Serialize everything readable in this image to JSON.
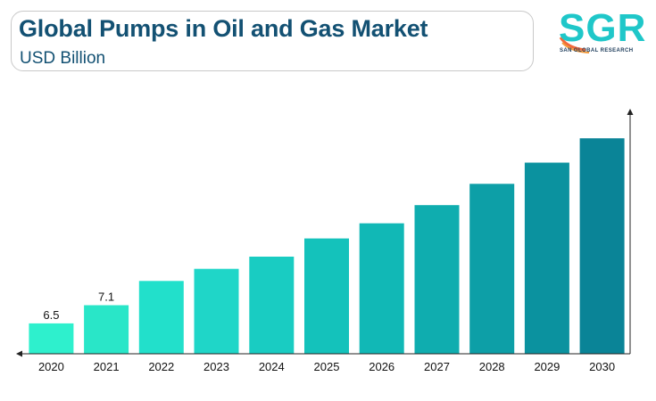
{
  "header": {
    "title": "Global Pumps in Oil and Gas Market",
    "subtitle": "USD Billion"
  },
  "logo": {
    "text": "SGR",
    "subtext": "SAN GLOBAL RESEARCH",
    "colors": {
      "main": "#1fc7c9",
      "accent": "#f26b3a"
    }
  },
  "chart_data": {
    "type": "bar",
    "title": "Global Pumps in Oil and Gas Market",
    "subtitle": "USD Billion",
    "xlabel": "",
    "ylabel": "",
    "categories": [
      "2020",
      "2021",
      "2022",
      "2023",
      "2024",
      "2025",
      "2026",
      "2027",
      "2028",
      "2029",
      "2030"
    ],
    "values": [
      6.5,
      7.1,
      7.9,
      8.3,
      8.7,
      9.3,
      9.8,
      10.4,
      11.1,
      11.8,
      12.6
    ],
    "data_labels": [
      "6.5",
      "7.1",
      "",
      "",
      "",
      "",
      "",
      "",
      "",
      "",
      ""
    ],
    "ylim": [
      5.5,
      13.4
    ],
    "grid": false,
    "legend": "none",
    "colors": [
      "#2ef0cd",
      "#29e6c8",
      "#22e0cb",
      "#1fd6c8",
      "#19ccc2",
      "#14c2bb",
      "#11b8b6",
      "#0fadaf",
      "#0d9fa7",
      "#0b929f",
      "#0a8497"
    ]
  }
}
